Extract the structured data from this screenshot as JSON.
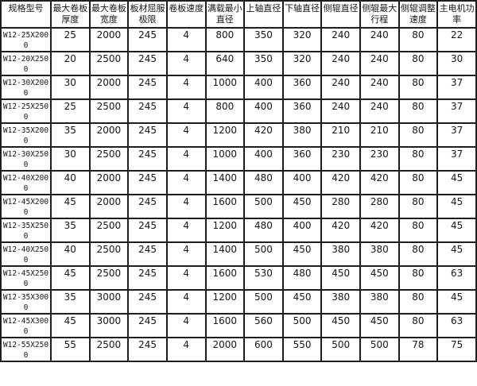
{
  "table": {
    "headers": [
      {
        "id": "spec-model",
        "label": "规格型号"
      },
      {
        "id": "max-plate-thickness",
        "label": "最大卷板厚度"
      },
      {
        "id": "max-plate-width",
        "label": "最大卷板宽度"
      },
      {
        "id": "plate-yield-limit",
        "label": "板材屈服极限"
      },
      {
        "id": "rolling-speed",
        "label": "卷板速度"
      },
      {
        "id": "min-full-load-diameter",
        "label": "满载最小直径"
      },
      {
        "id": "upper-shaft-diameter",
        "label": "上轴直径"
      },
      {
        "id": "lower-shaft-diameter",
        "label": "下轴直径"
      },
      {
        "id": "side-roller-diameter",
        "label": "侧辊直径"
      },
      {
        "id": "side-roller-max-stroke",
        "label": "侧辊最大行程"
      },
      {
        "id": "side-roller-adjust-speed",
        "label": "侧辊调整速度"
      },
      {
        "id": "main-motor-power",
        "label": "主电机功率"
      }
    ],
    "rows": [
      [
        "W12-25X2000",
        25,
        2000,
        245,
        4,
        800,
        350,
        320,
        240,
        240,
        80,
        22
      ],
      [
        "W12-20X2500",
        20,
        2500,
        245,
        4,
        640,
        350,
        320,
        240,
        240,
        80,
        30
      ],
      [
        "W12-30X2000",
        30,
        2000,
        245,
        4,
        1000,
        400,
        360,
        240,
        240,
        80,
        37
      ],
      [
        "W12-25X2500",
        25,
        2500,
        245,
        4,
        800,
        400,
        360,
        240,
        240,
        80,
        37
      ],
      [
        "W12-35X2000",
        35,
        2000,
        245,
        4,
        1200,
        420,
        380,
        210,
        210,
        80,
        37
      ],
      [
        "W12-30X2500",
        30,
        2500,
        245,
        4,
        1000,
        400,
        360,
        230,
        230,
        80,
        37
      ],
      [
        "W12-40X2000",
        40,
        2000,
        245,
        4,
        1400,
        480,
        400,
        420,
        420,
        80,
        45
      ],
      [
        "W12-45X2000",
        45,
        2000,
        245,
        4,
        1600,
        500,
        450,
        280,
        280,
        80,
        45
      ],
      [
        "W12-35X2500",
        35,
        2500,
        245,
        4,
        1200,
        480,
        400,
        420,
        420,
        80,
        45
      ],
      [
        "W12-40X2500",
        40,
        2500,
        245,
        4,
        1400,
        500,
        450,
        380,
        380,
        80,
        45
      ],
      [
        "W12-45X2500",
        45,
        2500,
        245,
        4,
        1600,
        530,
        480,
        450,
        450,
        80,
        63
      ],
      [
        "W12-35X3000",
        35,
        3000,
        245,
        4,
        1200,
        500,
        450,
        380,
        380,
        80,
        45
      ],
      [
        "W12-45X3000",
        45,
        3000,
        245,
        4,
        1600,
        560,
        500,
        450,
        450,
        80,
        63
      ],
      [
        "W12-55X2500",
        55,
        2500,
        245,
        4,
        2000,
        600,
        550,
        500,
        500,
        78,
        75
      ]
    ]
  }
}
